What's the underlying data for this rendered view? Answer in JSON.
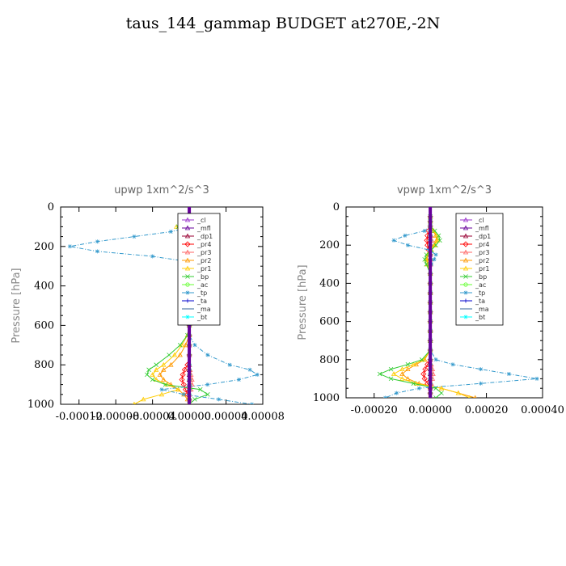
{
  "page": {
    "title": "taus_144_gammap  BUDGET at270E,-2N"
  },
  "chart_data": [
    {
      "type": "line",
      "title": "upwp   1xm^2/s^3",
      "ylabel": "Pressure [hPa]",
      "xlabel": "",
      "xlim": [
        -0.00014,
        8e-05
      ],
      "ylim": [
        1000,
        0
      ],
      "x_ticks": [
        "-0.00012",
        "-0.00008",
        "-0.00004",
        "0.00000",
        "0.00004",
        "0.00008"
      ],
      "x_tick_values": [
        -0.00012,
        -8e-05,
        -4e-05,
        0.0,
        4e-05,
        8e-05
      ],
      "y_ticks": [
        "0",
        "200",
        "400",
        "600",
        "800",
        "1000"
      ],
      "y_tick_values": [
        0,
        200,
        400,
        600,
        800,
        1000
      ],
      "legend": "top-right",
      "p": [
        50,
        75,
        100,
        125,
        150,
        175,
        200,
        225,
        250,
        275,
        300,
        350,
        400,
        450,
        500,
        550,
        600,
        650,
        700,
        750,
        800,
        825,
        850,
        875,
        900,
        925,
        950,
        975,
        1000
      ],
      "series": [
        {
          "name": "_cl",
          "color": "#9933cc",
          "values": [
            0,
            0,
            0,
            0,
            0,
            0,
            0,
            0,
            0,
            0,
            0,
            0,
            0,
            0,
            0,
            0,
            0,
            0,
            0,
            0,
            0,
            0,
            0,
            0,
            0,
            0,
            0,
            0,
            0
          ]
        },
        {
          "name": "_mfl",
          "color": "#660099",
          "values": [
            0,
            0,
            0,
            0,
            0,
            0,
            0,
            0,
            0,
            0,
            0,
            0,
            0,
            0,
            0,
            0,
            0,
            0,
            0,
            0,
            0,
            0,
            0,
            0,
            0,
            0,
            0,
            0,
            0
          ]
        },
        {
          "name": "_dp1",
          "color": "#990033",
          "values": [
            0,
            0,
            0,
            0,
            0,
            0,
            0,
            0,
            0,
            0,
            0,
            0,
            0,
            0,
            0,
            0,
            0,
            0,
            0,
            0,
            0,
            0,
            0,
            0,
            0,
            0,
            0,
            0,
            0
          ]
        },
        {
          "name": "_pr4",
          "color": "#ff0000",
          "values": [
            0,
            0,
            -2e-06,
            -4e-06,
            -6e-06,
            -8e-06,
            -9e-06,
            -7e-06,
            -4e-06,
            -2e-06,
            0,
            0,
            0,
            0,
            0,
            0,
            0,
            0,
            0,
            0,
            -2e-06,
            -5e-06,
            -7e-06,
            -8e-06,
            -6e-06,
            -4e-06,
            -2e-06,
            0,
            0
          ]
        },
        {
          "name": "_pr3",
          "color": "#ff6666",
          "values": [
            0,
            0,
            0,
            2e-06,
            4e-06,
            5e-06,
            4e-06,
            2e-06,
            0,
            0,
            0,
            0,
            0,
            0,
            0,
            0,
            0,
            0,
            0,
            0,
            0,
            1e-06,
            2e-06,
            3e-06,
            3e-06,
            2e-06,
            0,
            0,
            0
          ]
        },
        {
          "name": "_pr2",
          "color": "#ff9900",
          "values": [
            0,
            0,
            -8e-06,
            -4e-06,
            0,
            6e-06,
            1.2e-05,
            8e-06,
            0,
            -4e-06,
            0,
            0,
            0,
            0,
            0,
            0,
            0,
            0,
            -4e-06,
            -1e-05,
            -2e-05,
            -2.8e-05,
            -3.2e-05,
            -2.8e-05,
            -2e-05,
            -1.2e-05,
            -6e-06,
            -2e-06,
            0
          ]
        },
        {
          "name": "_pr1",
          "color": "#ffcc00",
          "values": [
            0,
            0,
            -1.4e-05,
            -6e-06,
            4e-06,
            1e-05,
            1.6e-05,
            1e-05,
            0,
            -8e-06,
            -4e-06,
            0,
            0,
            0,
            0,
            0,
            0,
            -2e-06,
            -8e-06,
            -1.6e-05,
            -2.8e-05,
            -3.6e-05,
            -4e-05,
            -3.6e-05,
            -2.4e-05,
            -1.2e-05,
            -3e-05,
            -5e-05,
            -6e-05
          ]
        },
        {
          "name": "_bp",
          "color": "#33cc33",
          "values": [
            0,
            0,
            -1.2e-05,
            -4e-06,
            8e-06,
            2e-05,
            2.6e-05,
            1.6e-05,
            0,
            -1e-05,
            -4e-06,
            0,
            0,
            0,
            0,
            0,
            0,
            -2e-06,
            -1e-05,
            -2.2e-05,
            -3.6e-05,
            -4.4e-05,
            -4.6e-05,
            -4e-05,
            -2.6e-05,
            1.2e-05,
            2e-05,
            6e-06,
            0
          ]
        },
        {
          "name": "_ac",
          "color": "#66ff33",
          "values": [
            0,
            0,
            0,
            0,
            0,
            0,
            0,
            0,
            0,
            0,
            0,
            0,
            0,
            0,
            0,
            0,
            0,
            0,
            0,
            0,
            0,
            0,
            0,
            0,
            0,
            0,
            0,
            0,
            0
          ]
        },
        {
          "name": "_tp",
          "color": "#3399cc",
          "values": [
            0,
            0,
            4e-06,
            -2e-05,
            -6e-05,
            -0.0001,
            -0.00013,
            -0.0001,
            -4e-05,
            -4e-06,
            0,
            0,
            0,
            2e-06,
            -4e-06,
            0,
            0,
            0,
            6e-06,
            2e-05,
            4.4e-05,
            6.6e-05,
            7.4e-05,
            5.4e-05,
            2e-05,
            -3e-05,
            -6e-06,
            3.2e-05,
            6.8e-05
          ]
        },
        {
          "name": "_ta",
          "color": "#0000cc",
          "values": [
            0,
            0,
            0,
            0,
            0,
            0,
            0,
            0,
            0,
            0,
            0,
            0,
            0,
            0,
            0,
            0,
            0,
            0,
            0,
            0,
            0,
            0,
            0,
            0,
            0,
            0,
            0,
            0,
            0
          ]
        },
        {
          "name": "_ma",
          "color": "#336699",
          "values": [
            0,
            0,
            0,
            0,
            0,
            0,
            0,
            0,
            0,
            0,
            0,
            0,
            0,
            0,
            0,
            0,
            0,
            0,
            0,
            0,
            0,
            0,
            0,
            0,
            0,
            0,
            0,
            0,
            0
          ]
        },
        {
          "name": "_bt",
          "color": "#00ffff",
          "values": [
            0,
            0,
            0,
            0,
            0,
            0,
            0,
            0,
            0,
            0,
            0,
            0,
            0,
            0,
            0,
            0,
            0,
            0,
            0,
            0,
            0,
            0,
            0,
            0,
            0,
            0,
            0,
            0,
            0
          ]
        }
      ]
    },
    {
      "type": "line",
      "title": "vpwp   1xm^2/s^3",
      "ylabel": "Pressure [hPa]",
      "xlabel": "",
      "xlim": [
        -0.0003,
        0.0004
      ],
      "ylim": [
        1000,
        0
      ],
      "x_ticks": [
        "-0.00020",
        "0.00000",
        "0.00020",
        "0.00040"
      ],
      "x_tick_values": [
        -0.0002,
        0.0,
        0.0002,
        0.0004
      ],
      "y_ticks": [
        "0",
        "200",
        "400",
        "600",
        "800",
        "1000"
      ],
      "y_tick_values": [
        0,
        200,
        400,
        600,
        800,
        1000
      ],
      "legend": "top-right",
      "p": [
        50,
        75,
        100,
        125,
        150,
        175,
        200,
        225,
        250,
        275,
        300,
        350,
        400,
        450,
        500,
        550,
        600,
        650,
        700,
        750,
        800,
        825,
        850,
        875,
        900,
        925,
        950,
        975,
        1000
      ],
      "series": [
        {
          "name": "_cl",
          "color": "#9933cc",
          "values": [
            0,
            0,
            0,
            0,
            0,
            0,
            0,
            0,
            0,
            0,
            0,
            0,
            0,
            0,
            0,
            0,
            0,
            0,
            0,
            0,
            0,
            0,
            0,
            0,
            0,
            0,
            0,
            0,
            0
          ]
        },
        {
          "name": "_mfl",
          "color": "#660099",
          "values": [
            0,
            0,
            0,
            0,
            0,
            0,
            0,
            0,
            0,
            0,
            0,
            0,
            0,
            0,
            0,
            0,
            0,
            0,
            0,
            0,
            0,
            0,
            0,
            0,
            0,
            0,
            0,
            0,
            0
          ]
        },
        {
          "name": "_dp1",
          "color": "#990033",
          "values": [
            0,
            0,
            0,
            0,
            0,
            0,
            0,
            0,
            0,
            0,
            0,
            0,
            0,
            0,
            0,
            0,
            0,
            0,
            0,
            0,
            0,
            0,
            0,
            0,
            0,
            0,
            0,
            0,
            0
          ]
        },
        {
          "name": "_pr4",
          "color": "#ff0000",
          "values": [
            0,
            0,
            0,
            -6e-06,
            -1e-05,
            -1.2e-05,
            -1e-05,
            -6e-06,
            0,
            0,
            0,
            0,
            0,
            0,
            0,
            0,
            0,
            0,
            0,
            0,
            0,
            -1e-05,
            -1.8e-05,
            -2.4e-05,
            -2e-05,
            -1e-05,
            0,
            0,
            0
          ]
        },
        {
          "name": "_pr3",
          "color": "#ff6666",
          "values": [
            0,
            0,
            0,
            0,
            4e-06,
            6e-06,
            4e-06,
            0,
            0,
            0,
            0,
            0,
            0,
            0,
            0,
            0,
            0,
            0,
            0,
            0,
            0,
            4e-06,
            8e-06,
            1e-05,
            8e-06,
            4e-06,
            0,
            0,
            0
          ]
        },
        {
          "name": "_pr2",
          "color": "#ff9900",
          "values": [
            0,
            0,
            0,
            1e-05,
            2e-05,
            2.2e-05,
            1.4e-05,
            4e-06,
            -8e-06,
            -1.2e-05,
            -8e-06,
            0,
            0,
            0,
            0,
            0,
            0,
            0,
            0,
            0,
            -2e-05,
            -5e-05,
            -8e-05,
            -0.0001,
            -8e-05,
            -4e-05,
            4e-05,
            0.0001,
            0.00016
          ]
        },
        {
          "name": "_pr1",
          "color": "#ffcc00",
          "values": [
            0,
            0,
            0,
            1.2e-05,
            2.4e-05,
            2.6e-05,
            1.6e-05,
            4e-06,
            -1e-05,
            -1.4e-05,
            -1e-05,
            0,
            0,
            0,
            0,
            0,
            0,
            0,
            0,
            0,
            -2.4e-05,
            -6e-05,
            -0.0001,
            -0.00013,
            -0.0001,
            -5e-05,
            4e-05,
            0.0001,
            0.00014
          ]
        },
        {
          "name": "_bp",
          "color": "#33cc33",
          "values": [
            0,
            0,
            0,
            1.6e-05,
            3e-05,
            3.4e-05,
            2e-05,
            4e-06,
            -1.4e-05,
            -2e-05,
            -1.4e-05,
            0,
            0,
            0,
            0,
            0,
            0,
            0,
            0,
            0,
            -3e-05,
            -8e-05,
            -0.00014,
            -0.00018,
            -0.00014,
            -6e-05,
            2e-05,
            4e-05,
            2e-05
          ]
        },
        {
          "name": "_ac",
          "color": "#66ff33",
          "values": [
            0,
            0,
            0,
            0,
            0,
            0,
            0,
            0,
            0,
            0,
            0,
            0,
            0,
            0,
            0,
            0,
            0,
            0,
            0,
            0,
            0,
            0,
            0,
            0,
            0,
            0,
            0,
            0,
            0
          ]
        },
        {
          "name": "_tp",
          "color": "#3399cc",
          "values": [
            0,
            0,
            0,
            -2e-05,
            -9e-05,
            -0.00013,
            -8e-05,
            -4e-06,
            2e-05,
            1.4e-05,
            4e-06,
            0,
            0,
            0,
            0,
            0,
            0,
            0,
            0,
            0,
            2e-05,
            8e-05,
            0.00018,
            0.00028,
            0.00038,
            0.00018,
            -4e-05,
            -0.00012,
            -0.00016
          ]
        },
        {
          "name": "_ta",
          "color": "#0000cc",
          "values": [
            0,
            0,
            0,
            0,
            0,
            0,
            0,
            0,
            0,
            0,
            0,
            0,
            0,
            0,
            0,
            0,
            0,
            0,
            0,
            0,
            0,
            0,
            0,
            0,
            0,
            0,
            0,
            0,
            0
          ]
        },
        {
          "name": "_ma",
          "color": "#336699",
          "values": [
            0,
            0,
            0,
            0,
            0,
            0,
            0,
            0,
            0,
            0,
            0,
            0,
            0,
            0,
            0,
            0,
            0,
            0,
            0,
            0,
            0,
            0,
            0,
            0,
            0,
            0,
            0,
            0,
            0
          ]
        },
        {
          "name": "_bt",
          "color": "#00ffff",
          "values": [
            0,
            0,
            0,
            0,
            0,
            0,
            0,
            0,
            0,
            0,
            0,
            0,
            0,
            0,
            0,
            0,
            0,
            0,
            0,
            0,
            0,
            0,
            0,
            0,
            0,
            0,
            0,
            0,
            0
          ]
        }
      ]
    }
  ]
}
